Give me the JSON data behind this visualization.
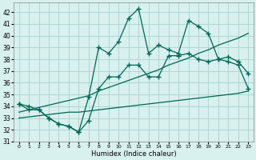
{
  "xlabel": "Humidex (Indice chaleur)",
  "bg_color": "#d8f0ee",
  "grid_color": "#a8d4d0",
  "line_color": "#006655",
  "xlim": [
    -0.5,
    23.5
  ],
  "ylim": [
    31,
    42.8
  ],
  "yticks": [
    31,
    32,
    33,
    34,
    35,
    36,
    37,
    38,
    39,
    40,
    41,
    42
  ],
  "xticks": [
    0,
    1,
    2,
    3,
    4,
    5,
    6,
    7,
    8,
    9,
    10,
    11,
    12,
    13,
    14,
    15,
    16,
    17,
    18,
    19,
    20,
    21,
    22,
    23
  ],
  "series_jagged": [
    34.2,
    33.7,
    33.7,
    33.0,
    32.5,
    32.3,
    31.8,
    34.8,
    39.0,
    38.5,
    39.5,
    41.5,
    42.3,
    38.5,
    39.2,
    38.8,
    38.5,
    41.3,
    40.8,
    40.2,
    38.0,
    38.2,
    37.8,
    36.8
  ],
  "series_smooth": [
    34.2,
    34.0,
    33.7,
    33.0,
    32.5,
    32.3,
    31.8,
    32.8,
    35.5,
    36.5,
    36.5,
    37.5,
    37.5,
    36.5,
    36.5,
    38.3,
    38.3,
    38.5,
    38.0,
    37.8,
    38.0,
    37.8,
    37.5,
    35.5
  ],
  "trend_upper": [
    33.5,
    33.7,
    33.9,
    34.1,
    34.3,
    34.5,
    34.7,
    34.9,
    35.3,
    35.6,
    35.9,
    36.2,
    36.5,
    36.8,
    37.1,
    37.5,
    37.8,
    38.1,
    38.5,
    38.8,
    39.2,
    39.5,
    39.8,
    40.2
  ],
  "trend_lower": [
    33.0,
    33.1,
    33.2,
    33.3,
    33.4,
    33.5,
    33.5,
    33.6,
    33.7,
    33.8,
    33.9,
    34.0,
    34.1,
    34.2,
    34.3,
    34.4,
    34.5,
    34.6,
    34.7,
    34.8,
    34.9,
    35.0,
    35.1,
    35.3
  ]
}
